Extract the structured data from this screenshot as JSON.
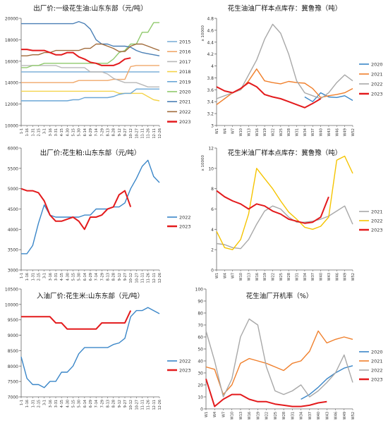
{
  "chart_data": [
    {
      "type": "line",
      "title": "出厂价:一级花生油:山东东部（元/吨）",
      "ylabel": "",
      "ylim": [
        10000,
        20000
      ],
      "yticks": [
        10000,
        12000,
        14000,
        16000,
        18000,
        20000
      ],
      "categories": [
        "1-1",
        "1-16",
        "1-31",
        "2-15",
        "3-1",
        "3-16",
        "3-31",
        "4-15",
        "4-30",
        "5-15",
        "5-30",
        "6-14",
        "6-29",
        "7-14",
        "7-29",
        "8-13",
        "8-28",
        "9-12",
        "9-27",
        "10-12",
        "10-27",
        "11-11",
        "11-26",
        "12-11",
        "12-26"
      ],
      "series": [
        {
          "name": "2015",
          "color": "#7fb0d8",
          "values": [
            15000,
            15000,
            15000,
            15000,
            15000,
            15000,
            15000,
            15000,
            15000,
            15000,
            15000,
            15000,
            15000,
            15000,
            15000,
            15000,
            15000,
            15000,
            15000,
            15000,
            15000,
            15000,
            15000,
            15000,
            15000
          ]
        },
        {
          "name": "2016",
          "color": "#f0a86a",
          "values": [
            14000,
            14000,
            14000,
            14000,
            14000,
            14000,
            14000,
            14000,
            14000,
            14000,
            14200,
            14200,
            14200,
            14200,
            14200,
            14200,
            14300,
            14300,
            14300,
            15500,
            15600,
            15600,
            15600,
            15600,
            15600
          ]
        },
        {
          "name": "2017",
          "color": "#b8b8b8",
          "values": [
            15600,
            15600,
            15600,
            15600,
            15600,
            15600,
            15600,
            15400,
            15400,
            15400,
            15400,
            15400,
            15000,
            15000,
            15000,
            14800,
            14400,
            14200,
            14000,
            14000,
            14000,
            13800,
            13600,
            13600,
            13600
          ]
        },
        {
          "name": "2018",
          "color": "#f4d34a",
          "values": [
            13200,
            13200,
            13200,
            13200,
            13200,
            13200,
            13200,
            13200,
            13200,
            13200,
            13200,
            13200,
            13200,
            13200,
            13200,
            13200,
            13200,
            13000,
            13000,
            13000,
            13000,
            13000,
            12700,
            12400,
            12300
          ]
        },
        {
          "name": "2019",
          "color": "#6aa6d6",
          "values": [
            12300,
            12300,
            12300,
            12300,
            12300,
            12300,
            12300,
            12300,
            12300,
            12400,
            12400,
            12600,
            12600,
            12600,
            12600,
            12600,
            12700,
            12900,
            13000,
            13000,
            13400,
            13400,
            13400,
            13400,
            13400
          ]
        },
        {
          "name": "2020",
          "color": "#8fc96c",
          "values": [
            15400,
            15400,
            15600,
            15600,
            15800,
            15800,
            15800,
            15800,
            15800,
            15800,
            15800,
            15800,
            15800,
            15800,
            15800,
            15800,
            16200,
            16800,
            17000,
            17600,
            17600,
            18700,
            18700,
            19600,
            19600
          ]
        },
        {
          "name": "2021",
          "color": "#4a7fb5",
          "values": [
            19500,
            19500,
            19500,
            19500,
            19500,
            19500,
            19500,
            19500,
            19500,
            19500,
            19700,
            19500,
            19000,
            18000,
            17600,
            17600,
            17400,
            17400,
            17400,
            17300,
            17000,
            16800,
            16700,
            16600,
            16500
          ]
        },
        {
          "name": "2022",
          "color": "#a06a3a",
          "values": [
            16500,
            16500,
            16600,
            16600,
            16800,
            16800,
            17000,
            17000,
            17000,
            17000,
            17000,
            17200,
            17200,
            17600,
            17600,
            17400,
            17200,
            16900,
            16900,
            17400,
            17600,
            17600,
            17400,
            17200,
            17000
          ]
        },
        {
          "name": "2023",
          "color": "#e31a1c",
          "values": [
            17100,
            17100,
            17000,
            17000,
            17000,
            16800,
            16600,
            16600,
            16800,
            16800,
            16400,
            16200,
            15900,
            15800,
            15600,
            15600,
            15600,
            15800,
            16200,
            16300,
            null,
            null,
            null,
            null,
            null
          ]
        }
      ]
    },
    {
      "type": "line",
      "title": "花生油油厂样本点库存：冀鲁豫（吨）",
      "ylabel": "x 10000",
      "ylim": [
        3,
        4.8
      ],
      "yticks": [
        3,
        3.2,
        3.4,
        3.6,
        3.8,
        4,
        4.2,
        4.4,
        4.6,
        4.8
      ],
      "categories": [
        "W1",
        "W4",
        "W7",
        "W10",
        "W13",
        "W16",
        "W19",
        "W22",
        "W25",
        "W28",
        "W31",
        "W34",
        "W37",
        "W40",
        "W43",
        "W46",
        "W49",
        "W52"
      ],
      "series": [
        {
          "name": "2020",
          "color": "#3a86c8",
          "values": [
            null,
            null,
            null,
            null,
            null,
            null,
            null,
            null,
            null,
            null,
            null,
            3.48,
            3.4,
            3.55,
            3.48,
            3.47,
            3.5,
            3.42
          ]
        },
        {
          "name": "2021",
          "color": "#f07f2b",
          "values": [
            3.35,
            3.45,
            3.55,
            3.6,
            3.75,
            3.95,
            3.75,
            3.72,
            3.7,
            3.74,
            3.72,
            3.71,
            3.62,
            3.47,
            3.5,
            3.52,
            3.55,
            3.62
          ]
        },
        {
          "name": "2022",
          "color": "#a8a8a8",
          "values": [
            3.45,
            3.5,
            3.55,
            3.6,
            3.85,
            4.1,
            4.45,
            4.7,
            4.55,
            4.2,
            3.75,
            3.55,
            3.5,
            3.45,
            3.55,
            3.72,
            3.85,
            3.75
          ]
        },
        {
          "name": "2023",
          "color": "#e31a1c",
          "values": [
            3.65,
            3.58,
            3.55,
            3.62,
            3.72,
            3.65,
            3.52,
            3.48,
            3.45,
            3.4,
            3.35,
            3.3,
            3.37,
            3.45,
            null,
            null,
            null,
            null
          ]
        }
      ]
    },
    {
      "type": "line",
      "title": "出厂价:花生粕:山东东部（元/吨）",
      "ylabel": "",
      "ylim": [
        3000,
        6000
      ],
      "yticks": [
        3000,
        3500,
        4000,
        4500,
        5000,
        5500,
        6000
      ],
      "categories": [
        "1-1",
        "1-16",
        "1-31",
        "2-15",
        "3-1",
        "3-16",
        "3-31",
        "4-15",
        "4-30",
        "5-15",
        "5-30",
        "6-14",
        "6-29",
        "7-14",
        "7-29",
        "8-13",
        "8-28",
        "9-12",
        "9-27",
        "10-12",
        "10-27",
        "11-11",
        "11-26",
        "12-11",
        "12-26"
      ],
      "series": [
        {
          "name": "2022",
          "color": "#3a86c8",
          "values": [
            3400,
            3400,
            3600,
            4150,
            4600,
            4350,
            4300,
            4300,
            4300,
            4300,
            4300,
            4350,
            4350,
            4500,
            4500,
            4500,
            4550,
            4550,
            4650,
            5000,
            5250,
            5550,
            5700,
            5300,
            5150
          ]
        },
        {
          "name": "2023",
          "color": "#e31a1c",
          "values": [
            5000,
            4950,
            4950,
            4900,
            4700,
            4350,
            4200,
            4200,
            4250,
            4300,
            4200,
            4000,
            4300,
            4300,
            4350,
            4500,
            4550,
            4850,
            4950,
            4550,
            null,
            null,
            null,
            null,
            null
          ]
        }
      ]
    },
    {
      "type": "line",
      "title": "花生米油厂样本点库存：冀鲁豫（吨）",
      "ylabel": "x 10000",
      "ylim": [
        0,
        12
      ],
      "yticks": [
        0,
        2,
        4,
        6,
        8,
        10,
        12
      ],
      "categories": [
        "W1",
        "W4",
        "W7",
        "W10",
        "W13",
        "W16",
        "W19",
        "W22",
        "W25",
        "W28",
        "W31",
        "W34",
        "W37",
        "W40",
        "W43",
        "W46",
        "W49",
        "W52"
      ],
      "series": [
        {
          "name": "2021",
          "color": "#a8a8a8",
          "values": [
            2.6,
            2.5,
            2.2,
            2.1,
            3,
            4.5,
            5.8,
            6.3,
            6,
            5.2,
            4.7,
            4.7,
            4.8,
            5,
            5.3,
            5.8,
            6.3,
            4.5
          ]
        },
        {
          "name": "2022",
          "color": "#f5c400",
          "values": [
            3.8,
            2.2,
            2,
            3,
            5.5,
            10,
            9,
            8,
            6.8,
            5.7,
            5,
            4.2,
            4,
            4.3,
            5.2,
            10.8,
            11.2,
            9.5
          ]
        },
        {
          "name": "2023",
          "color": "#e31a1c",
          "values": [
            7.8,
            7.2,
            6.8,
            6.5,
            6,
            6.5,
            6.3,
            5.8,
            5.5,
            5,
            4.8,
            4.6,
            4.7,
            5.2,
            7.2,
            null,
            null,
            null
          ]
        }
      ]
    },
    {
      "type": "line",
      "title": "入油厂价:花生米:山东东部（元/吨）",
      "ylabel": "",
      "ylim": [
        7000,
        10500
      ],
      "yticks": [
        7000,
        7500,
        8000,
        8500,
        9000,
        9500,
        10000,
        10500
      ],
      "categories": [
        "1-1",
        "1-16",
        "1-31",
        "2-15",
        "3-1",
        "3-16",
        "3-31",
        "4-15",
        "4-30",
        "5-15",
        "5-30",
        "6-14",
        "6-29",
        "7-14",
        "7-29",
        "8-13",
        "8-28",
        "9-12",
        "9-27",
        "10-12",
        "10-27",
        "11-11",
        "11-26",
        "12-11",
        "12-26"
      ],
      "series": [
        {
          "name": "2022",
          "color": "#3a86c8",
          "values": [
            8300,
            7600,
            7400,
            7400,
            7300,
            7500,
            7500,
            7800,
            7800,
            8000,
            8400,
            8600,
            8600,
            8600,
            8600,
            8600,
            8700,
            8750,
            8900,
            9600,
            9800,
            9800,
            9900,
            9800,
            9700
          ]
        },
        {
          "name": "2023",
          "color": "#e31a1c",
          "values": [
            9600,
            9600,
            9600,
            9600,
            9600,
            9600,
            9400,
            9400,
            9200,
            9200,
            9200,
            9200,
            9200,
            9200,
            9400,
            9400,
            9400,
            9400,
            9400,
            9800,
            null,
            null,
            null,
            null,
            null
          ]
        }
      ]
    },
    {
      "type": "line",
      "title": "花生油厂开机率（%）",
      "ylabel": "",
      "ylim": [
        0,
        100
      ],
      "yticks": [
        0,
        10,
        20,
        30,
        40,
        50,
        60,
        70,
        80,
        90,
        100
      ],
      "categories": [
        "W1",
        "W4",
        "W7",
        "W10",
        "W13",
        "W16",
        "W19",
        "W22",
        "W25",
        "W28",
        "W31",
        "W34",
        "W37",
        "W40",
        "W43",
        "W46",
        "W49",
        "W52"
      ],
      "series": [
        {
          "name": "2020",
          "color": "#3a86c8",
          "values": [
            null,
            null,
            null,
            null,
            null,
            null,
            null,
            null,
            null,
            null,
            null,
            8,
            12,
            18,
            25,
            30,
            34,
            36
          ]
        },
        {
          "name": "2021",
          "color": "#f07f2b",
          "values": [
            35,
            33,
            12,
            20,
            38,
            42,
            40,
            38,
            35,
            32,
            38,
            40,
            48,
            65,
            55,
            58,
            60,
            58
          ]
        },
        {
          "name": "2022",
          "color": "#a8a8a8",
          "values": [
            65,
            40,
            10,
            25,
            60,
            75,
            70,
            35,
            15,
            12,
            15,
            20,
            10,
            15,
            22,
            30,
            45,
            22
          ]
        },
        {
          "name": "2023",
          "color": "#e31a1c",
          "values": [
            25,
            2,
            8,
            12,
            12,
            8,
            6,
            6,
            4,
            3,
            2,
            2,
            3,
            5,
            6,
            null,
            null,
            null
          ]
        }
      ]
    }
  ]
}
